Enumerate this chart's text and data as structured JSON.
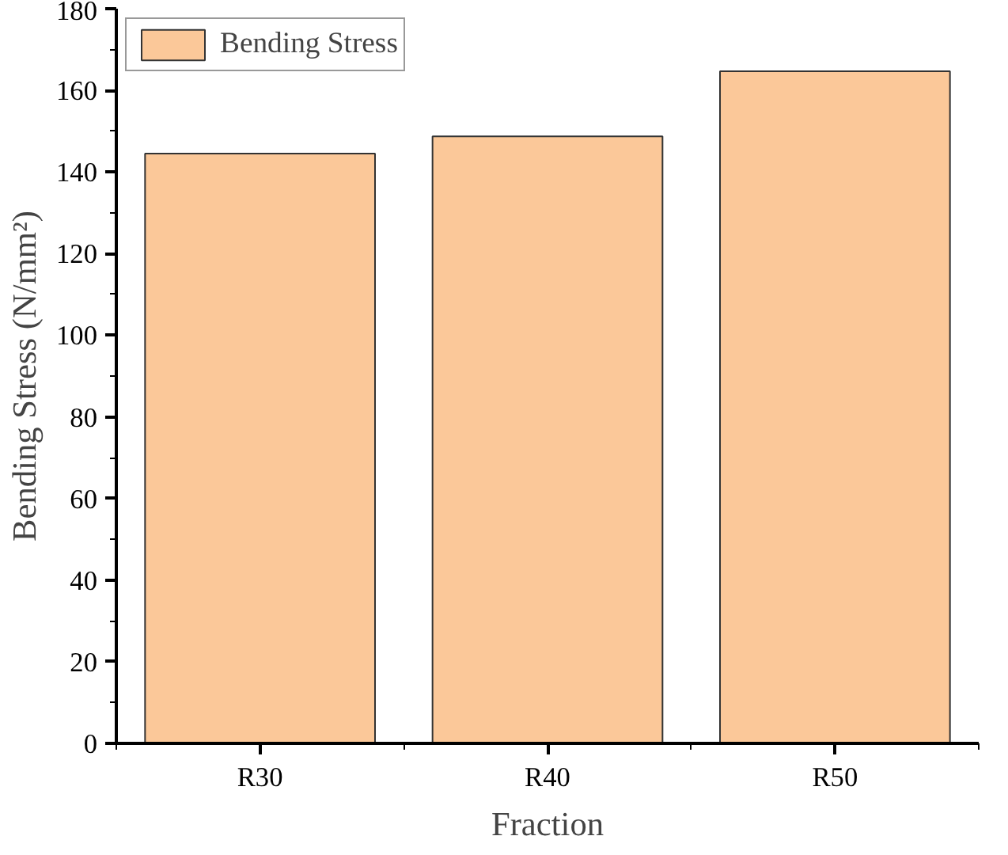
{
  "chart_data": {
    "type": "bar",
    "xlabel": "Fraction",
    "ylabel": "Bending Stress (N/mm²)",
    "categories": [
      "R30",
      "R40",
      "R50"
    ],
    "series": [
      {
        "name": "Bending Stress",
        "color": "#fbc899",
        "values": [
          144.5,
          148.7,
          164.7
        ]
      }
    ],
    "ylim": [
      0,
      180
    ],
    "yticks": [
      0,
      20,
      40,
      60,
      80,
      100,
      120,
      140,
      160,
      180
    ],
    "grid": false,
    "legend": "top left"
  }
}
